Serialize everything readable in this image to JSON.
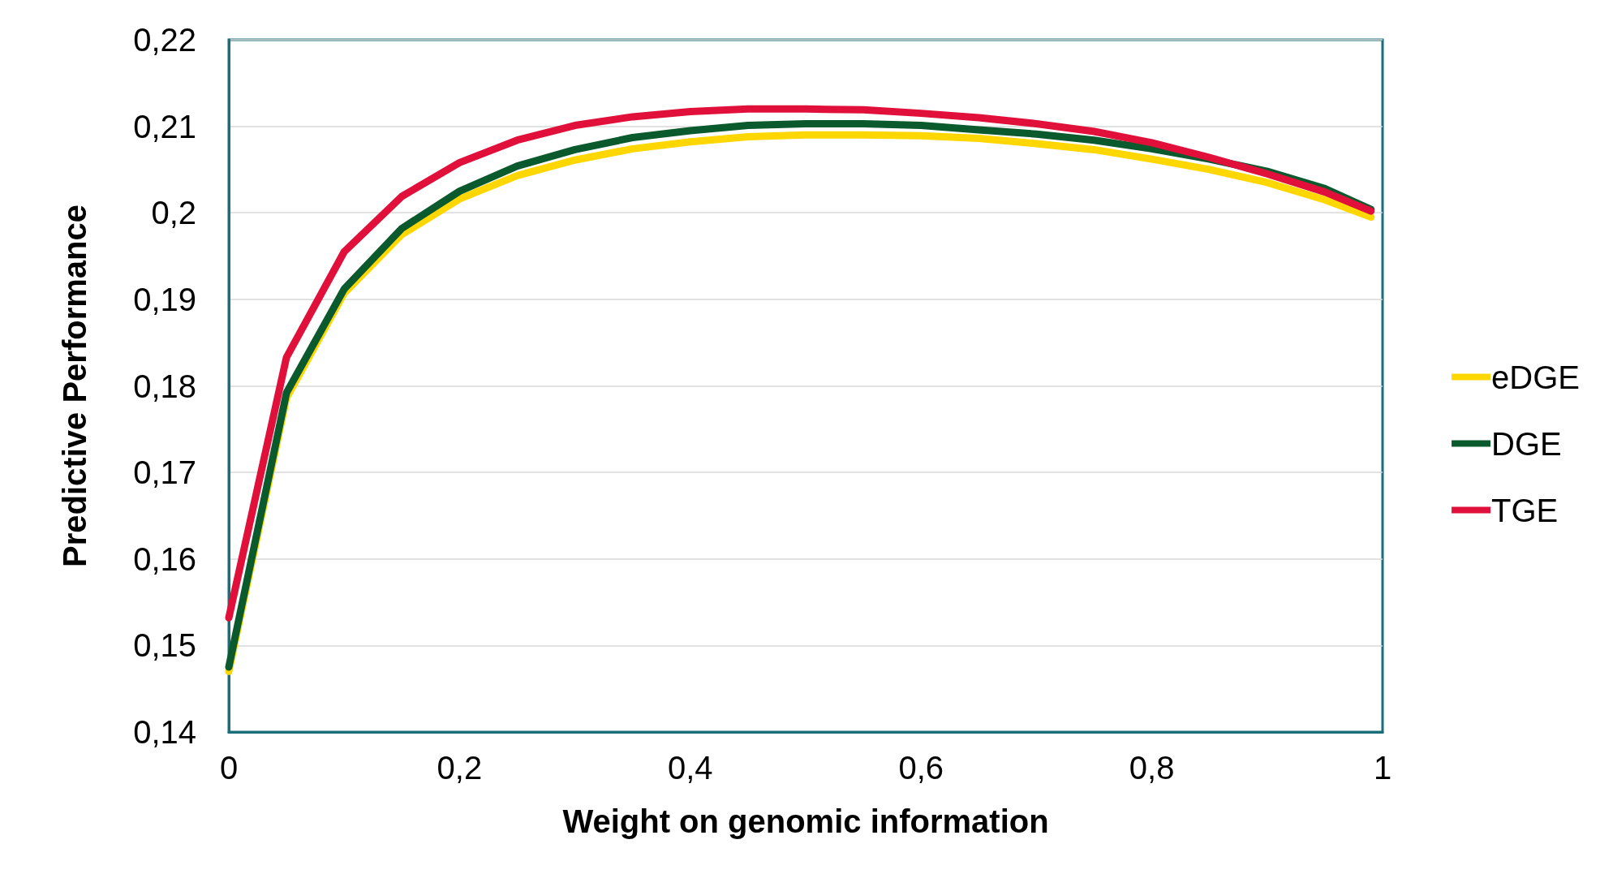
{
  "chart_data": {
    "type": "line",
    "xlabel": "Weight on genomic information",
    "ylabel": "Predictive Performance",
    "x": [
      0,
      0.05,
      0.1,
      0.15,
      0.2,
      0.25,
      0.3,
      0.35,
      0.4,
      0.45,
      0.5,
      0.55,
      0.6,
      0.65,
      0.7,
      0.75,
      0.8,
      0.85,
      0.9,
      0.95,
      0.99
    ],
    "series": [
      {
        "name": "eDGE",
        "color": "#ffd700",
        "values": [
          0.147,
          0.1786,
          0.1907,
          0.1975,
          0.2016,
          0.2043,
          0.2061,
          0.2074,
          0.2082,
          0.2088,
          0.209,
          0.209,
          0.2089,
          0.2086,
          0.208,
          0.2073,
          0.2062,
          0.205,
          0.2035,
          0.2015,
          0.1995
        ]
      },
      {
        "name": "DGE",
        "color": "#0b5a2e",
        "values": [
          0.1475,
          0.1792,
          0.1912,
          0.1982,
          0.2025,
          0.2054,
          0.2073,
          0.2087,
          0.2095,
          0.2101,
          0.2103,
          0.2103,
          0.2101,
          0.2096,
          0.2091,
          0.2084,
          0.2074,
          0.2062,
          0.2048,
          0.2028,
          0.2004
        ]
      },
      {
        "name": "TGE",
        "color": "#e0103a",
        "values": [
          0.1532,
          0.1833,
          0.1955,
          0.2019,
          0.2058,
          0.2084,
          0.2101,
          0.2111,
          0.2117,
          0.212,
          0.212,
          0.2119,
          0.2115,
          0.211,
          0.2103,
          0.2094,
          0.2081,
          0.2064,
          0.2045,
          0.2024,
          0.2002
        ]
      }
    ],
    "xlim": [
      0,
      1
    ],
    "xticks": [
      0,
      {
        "value": 0.2,
        "label": "0,2"
      },
      {
        "value": 0.4,
        "label": "0,4"
      },
      {
        "value": 0.6,
        "label": "0,6"
      },
      {
        "value": 0.8,
        "label": "0,8"
      },
      1
    ],
    "ylim": [
      0.14,
      0.22
    ],
    "yticks": [
      {
        "value": 0.14,
        "label": "0,14"
      },
      {
        "value": 0.15,
        "label": "0,15"
      },
      {
        "value": 0.16,
        "label": "0,16"
      },
      {
        "value": 0.17,
        "label": "0,17"
      },
      {
        "value": 0.18,
        "label": "0,18"
      },
      {
        "value": 0.19,
        "label": "0,19"
      },
      {
        "value": 0.2,
        "label": "0,2"
      },
      {
        "value": 0.21,
        "label": "0,21"
      },
      {
        "value": 0.22,
        "label": "0,22"
      }
    ],
    "grid": "y",
    "legend": "right",
    "marker": "none",
    "line_style": "solid"
  }
}
